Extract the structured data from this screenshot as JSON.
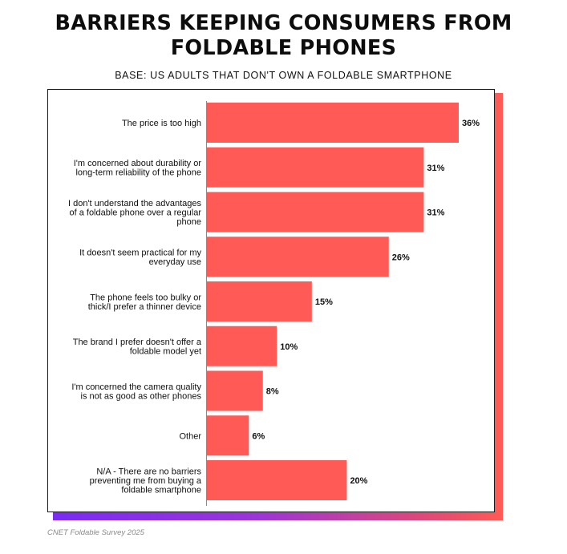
{
  "title_lines": [
    "BARRIERS KEEPING CONSUMERS FROM",
    "FOLDABLE PHONES"
  ],
  "subtitle": "BASE: US ADULTS THAT DON'T OWN A FOLDABLE SMARTPHONE",
  "source": "CNET Foldable Survey 2025",
  "colors": {
    "bar": "#ff5a55",
    "shadow": "#ff5a55",
    "gradient_start": "#7a2cf2",
    "gradient_end": "#ff5a55"
  },
  "chart_data": {
    "type": "bar",
    "orientation": "horizontal",
    "title": "BARRIERS KEEPING CONSUMERS FROM FOLDABLE PHONES",
    "subtitle": "BASE: US ADULTS THAT DON'T OWN A FOLDABLE SMARTPHONE",
    "xlabel": "",
    "ylabel": "",
    "grid": false,
    "xlim": [
      0,
      36
    ],
    "unit": "%",
    "categories": [
      "The price is too high",
      "I'm concerned about durability or long-term reliability of the phone",
      "I don't understand the advantages of a foldable phone over a regular phone",
      "It doesn't seem practical for my everyday use",
      "The phone feels too bulky or thick/I prefer a thinner device",
      "The brand I prefer doesn't offer a foldable model yet",
      "I'm concerned the camera quality is not as good as other phones",
      "Other",
      "N/A - There are no barriers preventing me from buying a foldable smartphone"
    ],
    "category_lines": [
      [
        "The price is too high"
      ],
      [
        "I'm concerned about durability or",
        "long-term reliability of the phone"
      ],
      [
        "I don't understand the advantages",
        "of a foldable phone over a regular",
        "phone"
      ],
      [
        "It doesn't seem practical for my",
        "everyday use"
      ],
      [
        "The phone feels too bulky or",
        "thick/I prefer a thinner device"
      ],
      [
        "The brand I prefer doesn't offer a",
        "foldable model yet"
      ],
      [
        "I'm concerned the camera quality",
        "is not as good as other phones"
      ],
      [
        "Other"
      ],
      [
        "N/A - There are no barriers",
        "preventing me from buying a",
        "foldable smartphone"
      ]
    ],
    "values": [
      36,
      31,
      31,
      26,
      15,
      10,
      8,
      6,
      20
    ],
    "value_labels": [
      "36%",
      "31%",
      "31%",
      "26%",
      "15%",
      "10%",
      "8%",
      "6%",
      "20%"
    ]
  }
}
